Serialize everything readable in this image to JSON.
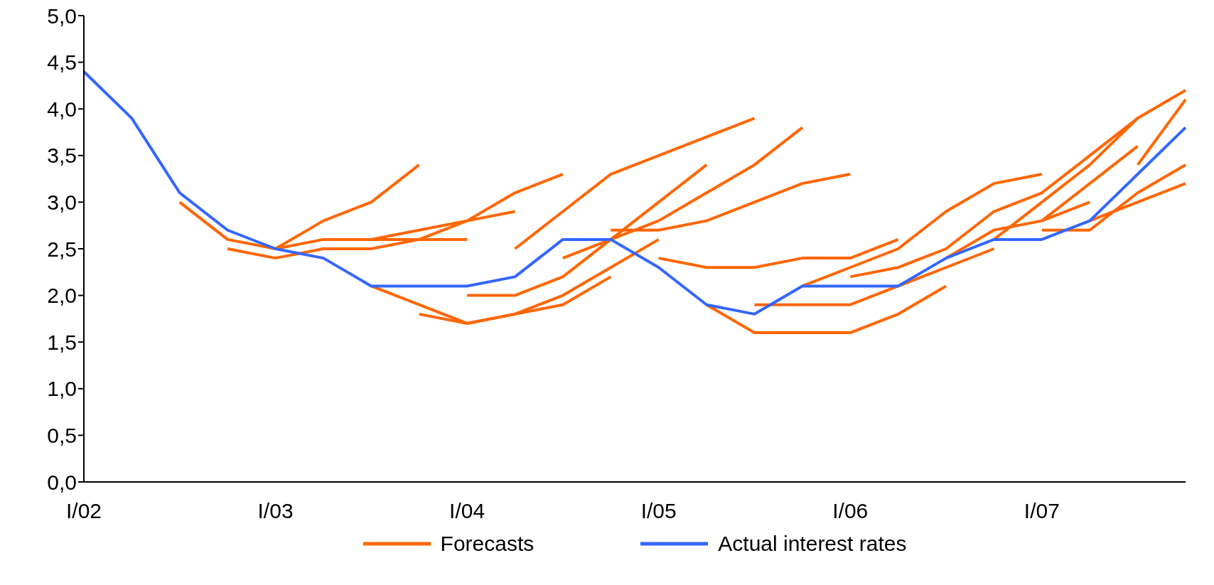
{
  "chart_data": {
    "type": "line",
    "categories": [
      "I/02",
      null,
      null,
      null,
      "I/03",
      null,
      null,
      null,
      "I/04",
      null,
      null,
      null,
      "I/05",
      null,
      null,
      null,
      "I/06",
      null,
      null,
      null,
      "I/07",
      null,
      null,
      null
    ],
    "ylim": [
      0,
      5
    ],
    "yticks": [
      {
        "value": 0,
        "label": "0,0"
      },
      {
        "value": 0.5,
        "label": "0,5"
      },
      {
        "value": 1,
        "label": "1,0"
      },
      {
        "value": 1.5,
        "label": "1,5"
      },
      {
        "value": 2,
        "label": "2,0"
      },
      {
        "value": 2.5,
        "label": "2,5"
      },
      {
        "value": 3,
        "label": "3,0"
      },
      {
        "value": 3.5,
        "label": "3,5"
      },
      {
        "value": 4,
        "label": "4,0"
      },
      {
        "value": 4.5,
        "label": "4,5"
      },
      {
        "value": 5,
        "label": "5,0"
      }
    ],
    "grid": false,
    "legend": "bottom",
    "marker": "none",
    "line_style": "solid",
    "series": [
      {
        "name": "Forecasts",
        "color": "#ff6600",
        "values": [
          null,
          null,
          3.0,
          2.6,
          2.5,
          2.8,
          3.0,
          3.4,
          null,
          null,
          null,
          null,
          null,
          null,
          null,
          null,
          null,
          null,
          null,
          null,
          null,
          null,
          null,
          null
        ]
      },
      {
        "color": "#ff6600",
        "values": [
          null,
          null,
          null,
          2.5,
          2.4,
          2.5,
          2.5,
          2.6,
          2.8,
          2.9,
          null,
          null,
          null,
          null,
          null,
          null,
          null,
          null,
          null,
          null,
          null,
          null,
          null,
          null
        ]
      },
      {
        "color": "#ff6600",
        "values": [
          null,
          null,
          null,
          null,
          2.5,
          2.6,
          2.6,
          2.6,
          2.6,
          null,
          null,
          null,
          null,
          null,
          null,
          null,
          null,
          null,
          null,
          null,
          null,
          null,
          null,
          null
        ]
      },
      {
        "color": "#ff6600",
        "values": [
          null,
          null,
          null,
          null,
          null,
          2.6,
          2.6,
          2.7,
          2.8,
          3.1,
          3.3,
          null,
          null,
          null,
          null,
          null,
          null,
          null,
          null,
          null,
          null,
          null,
          null,
          null
        ]
      },
      {
        "color": "#ff6600",
        "values": [
          null,
          null,
          null,
          null,
          null,
          null,
          2.1,
          1.9,
          1.7,
          1.8,
          2.0,
          2.3,
          2.6,
          null,
          null,
          null,
          null,
          null,
          null,
          null,
          null,
          null,
          null,
          null
        ]
      },
      {
        "color": "#ff6600",
        "values": [
          null,
          null,
          null,
          null,
          null,
          null,
          null,
          1.8,
          1.7,
          1.8,
          1.9,
          2.2,
          null,
          null,
          null,
          null,
          null,
          null,
          null,
          null,
          null,
          null,
          null,
          null
        ]
      },
      {
        "color": "#ff6600",
        "values": [
          null,
          null,
          null,
          null,
          null,
          null,
          null,
          null,
          2.0,
          2.0,
          2.2,
          2.6,
          3.0,
          3.4,
          null,
          null,
          null,
          null,
          null,
          null,
          null,
          null,
          null,
          null
        ]
      },
      {
        "color": "#ff6600",
        "values": [
          null,
          null,
          null,
          null,
          null,
          null,
          null,
          null,
          null,
          2.5,
          2.9,
          3.3,
          3.5,
          3.7,
          3.9,
          null,
          null,
          null,
          null,
          null,
          null,
          null,
          null,
          null
        ]
      },
      {
        "color": "#ff6600",
        "values": [
          null,
          null,
          null,
          null,
          null,
          null,
          null,
          null,
          null,
          null,
          2.4,
          2.6,
          2.8,
          3.1,
          3.4,
          3.8,
          null,
          null,
          null,
          null,
          null,
          null,
          null,
          null
        ]
      },
      {
        "color": "#ff6600",
        "values": [
          null,
          null,
          null,
          null,
          null,
          null,
          null,
          null,
          null,
          null,
          null,
          2.7,
          2.7,
          2.8,
          3.0,
          3.2,
          3.3,
          null,
          null,
          null,
          null,
          null,
          null,
          null
        ]
      },
      {
        "color": "#ff6600",
        "values": [
          null,
          null,
          null,
          null,
          null,
          null,
          null,
          null,
          null,
          null,
          null,
          null,
          2.4,
          2.3,
          2.3,
          2.4,
          2.4,
          2.6,
          null,
          null,
          null,
          null,
          null,
          null
        ]
      },
      {
        "color": "#ff6600",
        "values": [
          null,
          null,
          null,
          null,
          null,
          null,
          null,
          null,
          null,
          null,
          null,
          null,
          null,
          1.9,
          1.6,
          1.6,
          1.6,
          1.8,
          2.1,
          null,
          null,
          null,
          null,
          null
        ]
      },
      {
        "color": "#ff6600",
        "values": [
          null,
          null,
          null,
          null,
          null,
          null,
          null,
          null,
          null,
          null,
          null,
          null,
          null,
          null,
          1.9,
          1.9,
          1.9,
          2.1,
          2.3,
          2.5,
          null,
          null,
          null,
          null
        ]
      },
      {
        "color": "#ff6600",
        "values": [
          null,
          null,
          null,
          null,
          null,
          null,
          null,
          null,
          null,
          null,
          null,
          null,
          null,
          null,
          null,
          2.1,
          2.3,
          2.5,
          2.9,
          3.2,
          3.3,
          null,
          null,
          null
        ]
      },
      {
        "color": "#ff6600",
        "values": [
          null,
          null,
          null,
          null,
          null,
          null,
          null,
          null,
          null,
          null,
          null,
          null,
          null,
          null,
          null,
          null,
          2.2,
          2.3,
          2.5,
          2.9,
          3.1,
          3.5,
          3.9,
          4.2
        ]
      },
      {
        "color": "#ff6600",
        "values": [
          null,
          null,
          null,
          null,
          null,
          null,
          null,
          null,
          null,
          null,
          null,
          null,
          null,
          null,
          null,
          null,
          null,
          null,
          2.4,
          2.7,
          2.8,
          3.0,
          null,
          null
        ]
      },
      {
        "color": "#ff6600",
        "values": [
          null,
          null,
          null,
          null,
          null,
          null,
          null,
          null,
          null,
          null,
          null,
          null,
          null,
          null,
          null,
          null,
          null,
          null,
          null,
          2.6,
          3.0,
          3.4,
          3.9,
          null
        ]
      },
      {
        "color": "#ff6600",
        "values": [
          null,
          null,
          null,
          null,
          null,
          null,
          null,
          null,
          null,
          null,
          null,
          null,
          null,
          null,
          null,
          null,
          null,
          null,
          null,
          null,
          2.8,
          3.2,
          3.6,
          null
        ]
      },
      {
        "color": "#ff6600",
        "values": [
          null,
          null,
          null,
          null,
          null,
          null,
          null,
          null,
          null,
          null,
          null,
          null,
          null,
          null,
          null,
          null,
          null,
          null,
          null,
          null,
          2.7,
          2.7,
          3.1,
          3.4
        ]
      },
      {
        "color": "#ff6600",
        "values": [
          null,
          null,
          null,
          null,
          null,
          null,
          null,
          null,
          null,
          null,
          null,
          null,
          null,
          null,
          null,
          null,
          null,
          null,
          null,
          null,
          null,
          2.8,
          3.0,
          3.2
        ]
      },
      {
        "color": "#ff6600",
        "values": [
          null,
          null,
          null,
          null,
          null,
          null,
          null,
          null,
          null,
          null,
          null,
          null,
          null,
          null,
          null,
          null,
          null,
          null,
          null,
          null,
          null,
          null,
          3.4,
          4.1
        ]
      },
      {
        "name": "Actual interest rates",
        "color": "#3366ff",
        "values": [
          4.4,
          3.9,
          3.1,
          2.7,
          2.5,
          2.4,
          2.1,
          2.1,
          2.1,
          2.2,
          2.6,
          2.6,
          2.3,
          1.9,
          1.8,
          2.1,
          2.1,
          2.1,
          2.4,
          2.6,
          2.6,
          2.8,
          3.3,
          3.8
        ]
      }
    ]
  }
}
